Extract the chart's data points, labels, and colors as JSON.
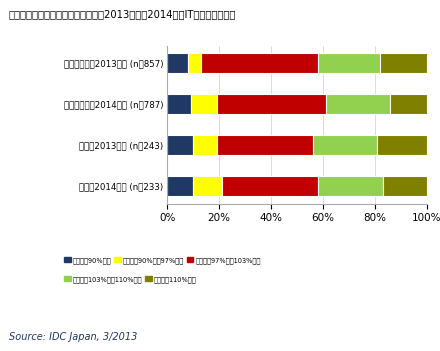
{
  "title": "中堅中小企業および大企業における2013年度〜2014年度IT支出予算増減率",
  "categories": [
    "中堅中小企業2013年度 (n＝857)",
    "中堅中小企業2014年度 (n＝787)",
    "大企業2013年度 (n＝243)",
    "大企業2014年度 (n＝233)"
  ],
  "segments": {
    "s1": [
      0.08,
      0.09,
      0.1,
      0.1
    ],
    "s2": [
      0.05,
      0.1,
      0.09,
      0.11
    ],
    "s3": [
      0.45,
      0.42,
      0.37,
      0.37
    ],
    "s4": [
      0.24,
      0.25,
      0.25,
      0.25
    ],
    "s5": [
      0.18,
      0.14,
      0.19,
      0.17
    ]
  },
  "colors": {
    "s1": "#1f3864",
    "s2": "#ffff00",
    "s3": "#c00000",
    "s4": "#92d050",
    "s5": "#808000"
  },
  "legend_labels": {
    "s1": "前年度比90%未満",
    "s2": "前年度比90%以上97%未満",
    "s3": "前年度比97%以上103%未満",
    "s4": "前年度比103%以上110%未満",
    "s5": "前年度比110%以上"
  },
  "source": "Source: IDC Japan, 3/2013",
  "background_color": "#ffffff"
}
